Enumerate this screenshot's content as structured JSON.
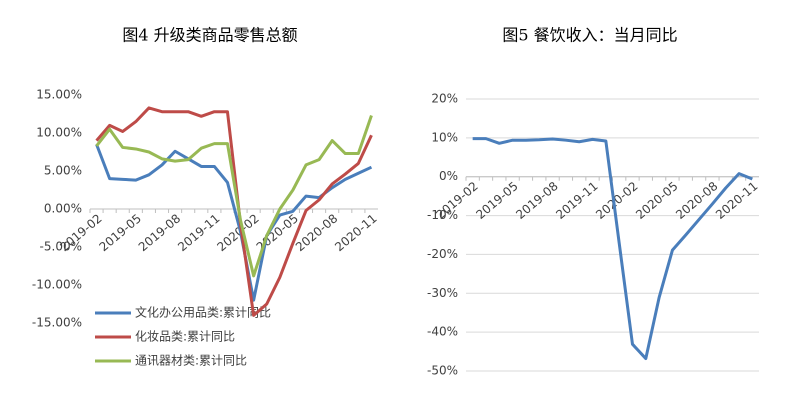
{
  "chart_data": [
    {
      "type": "line",
      "title": "图4 升级类商品零售总额",
      "categories": [
        "2019-02",
        null,
        null,
        "2019-05",
        null,
        null,
        "2019-08",
        null,
        null,
        "2019-11",
        null,
        null,
        "2020-02",
        null,
        null,
        "2020-05",
        null,
        null,
        "2020-08",
        null,
        null,
        "2020-11"
      ],
      "series": [
        {
          "name": "文化办公用品类:累计同比",
          "color": "#4a7ebb",
          "values": [
            8.5,
            4.0,
            3.9,
            3.8,
            4.5,
            5.8,
            7.6,
            6.6,
            5.6,
            5.6,
            3.5,
            -3.0,
            -12.0,
            -3.5,
            -0.8,
            -0.3,
            1.7,
            1.5,
            2.8,
            3.9,
            4.7,
            5.5
          ]
        },
        {
          "name": "化妆品类:累计同比",
          "color": "#be4b48",
          "values": [
            9.0,
            11.0,
            10.2,
            11.5,
            13.3,
            12.8,
            12.8,
            12.8,
            12.2,
            12.8,
            12.8,
            -2.0,
            -14.0,
            -12.5,
            -9.0,
            -4.5,
            -0.2,
            1.2,
            3.3,
            4.6,
            6.0,
            9.7
          ]
        },
        {
          "name": "通讯器材类:累计同比",
          "color": "#98b954",
          "values": [
            8.3,
            10.5,
            8.1,
            7.9,
            7.5,
            6.6,
            6.3,
            6.5,
            8.0,
            8.6,
            8.6,
            -1.5,
            -8.8,
            -3.5,
            0.0,
            2.5,
            5.8,
            6.5,
            9.0,
            7.3,
            7.3,
            12.3
          ]
        }
      ],
      "ylim": [
        -15,
        15
      ],
      "yticks": [
        {
          "value": 15,
          "label": "15.00%"
        },
        {
          "value": 10,
          "label": "10.00%"
        },
        {
          "value": 5,
          "label": "5.00%"
        },
        {
          "value": 0,
          "label": "0.00%"
        },
        {
          "value": -5,
          "label": "-5.00%"
        },
        {
          "value": -10,
          "label": "-10.00%"
        },
        {
          "value": -15,
          "label": "-15.00%"
        }
      ],
      "grid": false
    },
    {
      "type": "line",
      "title": "图5 餐饮收入：当月同比",
      "categories": [
        "2019-02",
        null,
        null,
        "2019-05",
        null,
        null,
        "2019-08",
        null,
        null,
        "2019-11",
        null,
        null,
        "2020-02",
        null,
        null,
        "2020-05",
        null,
        null,
        "2020-08",
        null,
        null,
        "2020-11"
      ],
      "values": [
        9.8,
        9.8,
        8.6,
        9.4,
        9.4,
        9.5,
        9.7,
        9.4,
        9.0,
        9.6,
        9.2,
        -17.0,
        -43.1,
        -46.8,
        -31.1,
        -18.9,
        -15.0,
        -11.0,
        -7.0,
        -2.9,
        0.8,
        -0.6
      ],
      "color": "#4a7ebb",
      "ylim": [
        -50,
        20
      ],
      "yticks": [
        {
          "value": 20,
          "label": "20%"
        },
        {
          "value": 10,
          "label": "10%"
        },
        {
          "value": 0,
          "label": "0%"
        },
        {
          "value": -10,
          "label": "-10%"
        },
        {
          "value": -20,
          "label": "-20%"
        },
        {
          "value": -30,
          "label": "-30%"
        },
        {
          "value": -40,
          "label": "-40%"
        },
        {
          "value": -50,
          "label": "-50%"
        }
      ],
      "grid": true
    }
  ]
}
